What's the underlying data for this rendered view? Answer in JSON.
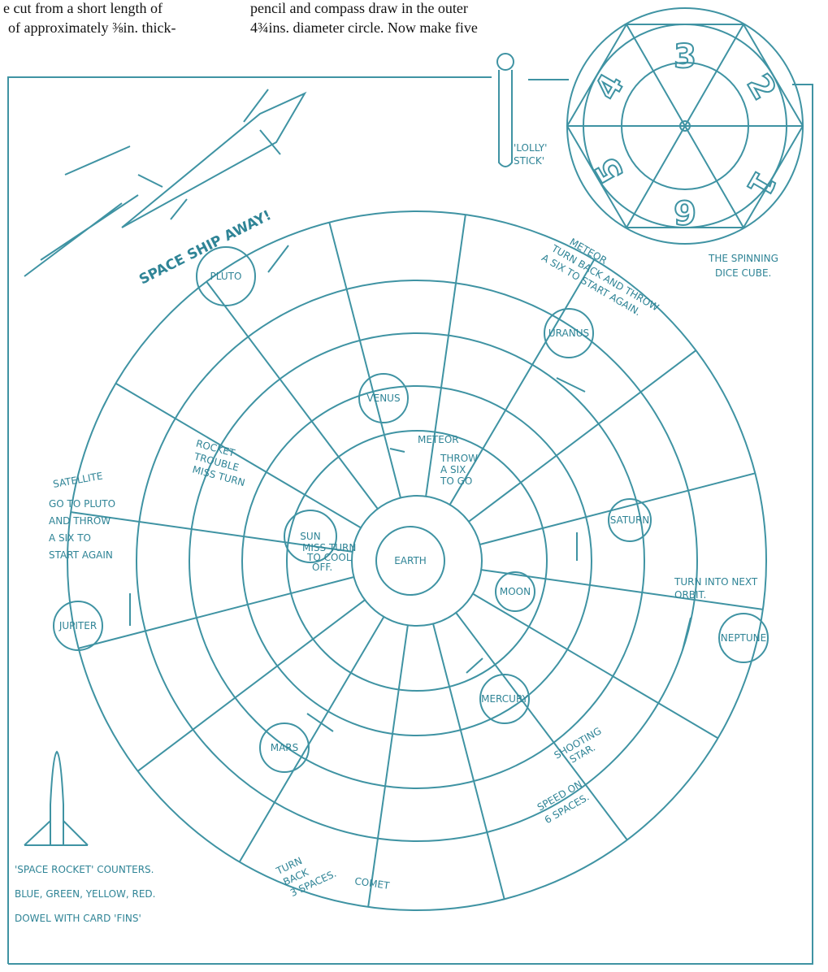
{
  "header": {
    "left": [
      "e cut from a short length of",
      "of approximately ⅜in. thick-"
    ],
    "right": [
      "pencil and compass draw in the outer",
      "4¾ins. diameter circle. Now make five"
    ]
  },
  "stick": {
    "label": [
      "'LOLLY'",
      "STICK'"
    ]
  },
  "dice": {
    "numbers": [
      "3",
      "2",
      "1",
      "6",
      "5",
      "4"
    ],
    "caption": [
      "THE SPINNING",
      "DICE CUBE."
    ]
  },
  "board": {
    "headline": "SPACE SHIP AWAY!",
    "pluto": "PLUTO",
    "uranus": "URANUS",
    "venus": "VENUS",
    "sun": "SUN",
    "earth": "EARTH",
    "moon": "MOON",
    "saturn": "SATURN",
    "neptune": "NEPTUNE",
    "jupiter": "JUPITER",
    "mercury": "MERCURY",
    "mars": "MARS",
    "meteor_outer": {
      "title": "METEOR",
      "lines": [
        "TURN BACK AND THROW",
        "A SIX TO START AGAIN."
      ]
    },
    "rocket_trouble": [
      "ROCKET",
      "TROUBLE",
      "MISS TURN"
    ],
    "satellite": {
      "title": "SATELLITE",
      "lines": [
        "GO TO PLUTO",
        "AND THROW",
        "A SIX TO",
        "START AGAIN"
      ]
    },
    "meteor_inner": {
      "title": "METEOR",
      "lines": [
        "THROW",
        "A SIX",
        "TO GO"
      ]
    },
    "sun_rule": [
      "MISS TURN",
      "TO COOL",
      "OFF."
    ],
    "orbit_rule": [
      "TURN INTO NEXT",
      "ORBIT."
    ],
    "shooting_star": {
      "title": [
        "SHOOTING",
        "STAR."
      ],
      "lines": [
        "SPEED ON",
        "6 SPACES."
      ]
    },
    "comet": {
      "title": "COMET",
      "lines": [
        "TURN",
        "BACK",
        "3 SPACES."
      ]
    }
  },
  "counters": [
    "'SPACE ROCKET' COUNTERS.",
    "BLUE, GREEN, YELLOW, RED.",
    "DOWEL WITH CARD 'FINS'"
  ]
}
